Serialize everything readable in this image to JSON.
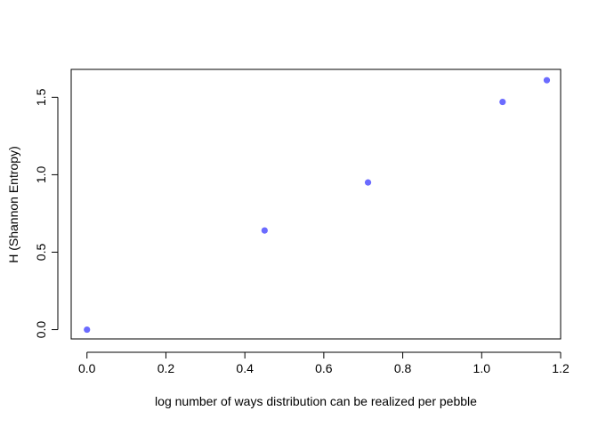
{
  "chart_data": {
    "type": "scatter",
    "title": "",
    "xlabel": "log number of ways distribution can be realized per pebble",
    "ylabel": "H (Shannon Entropy)",
    "xlim": [
      -0.04,
      1.2
    ],
    "ylim": [
      -0.06,
      1.68
    ],
    "x_ticks": [
      0.0,
      0.2,
      0.4,
      0.6,
      0.8,
      1.0,
      1.2
    ],
    "x_tick_labels": [
      "0.0",
      "0.2",
      "0.4",
      "0.6",
      "0.8",
      "1.0",
      "1.2"
    ],
    "y_ticks": [
      0.0,
      0.5,
      1.0,
      1.5
    ],
    "y_tick_labels": [
      "0.0",
      "0.5",
      "1.0",
      "1.5"
    ],
    "grid": false,
    "point_color": "#6b6bff",
    "series": [
      {
        "x": [
          0.0,
          0.45,
          0.712,
          1.053,
          1.165
        ],
        "y": [
          0.0,
          0.64,
          0.95,
          1.47,
          1.61
        ]
      }
    ]
  }
}
